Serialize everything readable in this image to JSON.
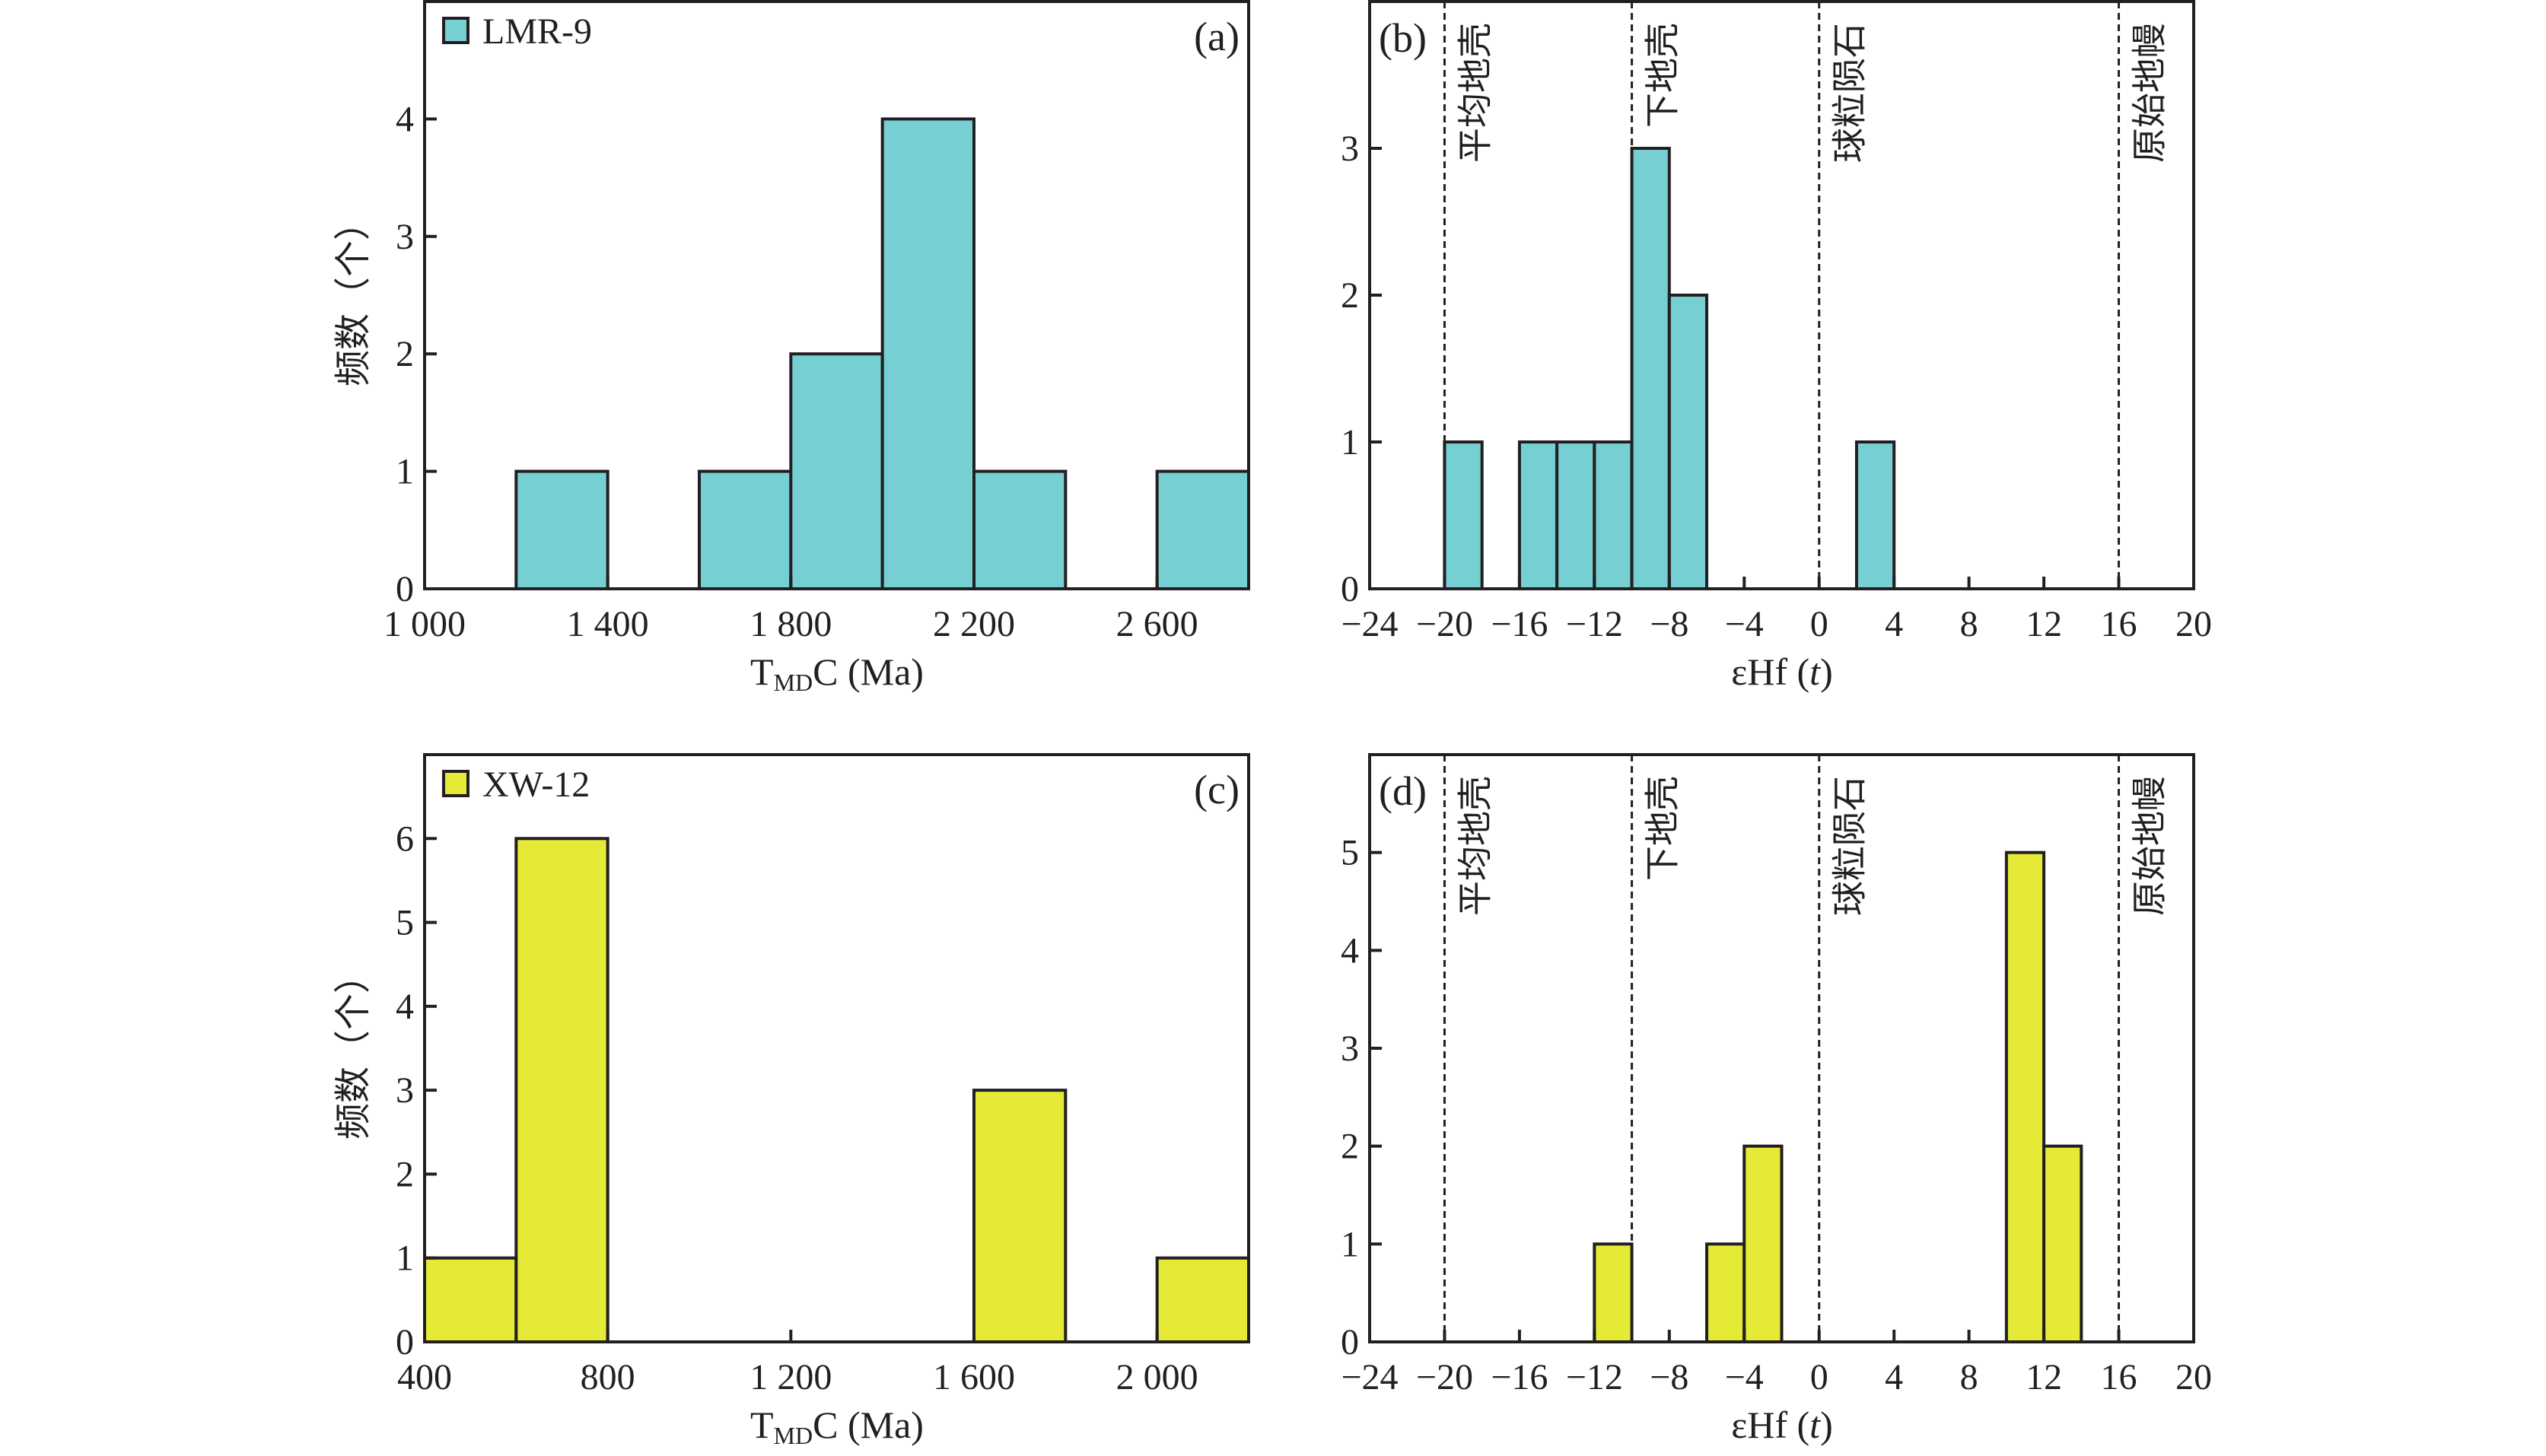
{
  "figure": {
    "y_axis_title": "频数（个）",
    "tmdc_title_main": "T",
    "tmdc_title_sub": "MD",
    "tmdc_title_rest": "C (Ma)",
    "ehf_title_main": "εHf (",
    "ehf_title_italic": "t",
    "ehf_title_close": ")"
  },
  "chart_data": [
    {
      "id": "a",
      "panel_label": "(a)",
      "type": "bar",
      "subtype": "histogram",
      "legend": "LMR-9",
      "legend_placement": "top-left",
      "color": "#76D0D3",
      "xlabel": "TMDC (Ma)",
      "ylabel": "频数（个）",
      "xlim": [
        1000,
        2800
      ],
      "ylim": [
        0,
        5
      ],
      "xticks": [
        1000,
        1400,
        1800,
        2200,
        2600
      ],
      "xtick_labels": [
        "1 000",
        "1 400",
        "1 800",
        "2 200",
        "2 600"
      ],
      "yticks": [
        0,
        1,
        2,
        3,
        4
      ],
      "bins": [
        {
          "x0": 1200,
          "x1": 1400,
          "count": 1
        },
        {
          "x0": 1600,
          "x1": 1800,
          "count": 1
        },
        {
          "x0": 1800,
          "x1": 2000,
          "count": 2
        },
        {
          "x0": 2000,
          "x1": 2200,
          "count": 4
        },
        {
          "x0": 2200,
          "x1": 2400,
          "count": 1
        },
        {
          "x0": 2600,
          "x1": 2800,
          "count": 1
        }
      ],
      "reference_lines": []
    },
    {
      "id": "b",
      "panel_label": "(b)",
      "type": "bar",
      "subtype": "histogram",
      "legend": "",
      "color": "#76D0D3",
      "xlabel": "εHf (t)",
      "ylabel": "",
      "xlim": [
        -24,
        20
      ],
      "ylim": [
        0,
        4
      ],
      "xticks": [
        -24,
        -20,
        -16,
        -12,
        -8,
        -4,
        0,
        4,
        8,
        12,
        16,
        20
      ],
      "xtick_labels": [
        "−24",
        "−20",
        "−16",
        "−12",
        "−8",
        "−4",
        "0",
        "4",
        "8",
        "12",
        "16",
        "20"
      ],
      "yticks": [
        0,
        1,
        2,
        3
      ],
      "bins": [
        {
          "x0": -20,
          "x1": -18,
          "count": 1
        },
        {
          "x0": -16,
          "x1": -14,
          "count": 1
        },
        {
          "x0": -14,
          "x1": -12,
          "count": 1
        },
        {
          "x0": -12,
          "x1": -10,
          "count": 1
        },
        {
          "x0": -10,
          "x1": -8,
          "count": 3
        },
        {
          "x0": -8,
          "x1": -6,
          "count": 2
        },
        {
          "x0": 2,
          "x1": 4,
          "count": 1
        }
      ],
      "reference_lines": [
        {
          "x": -20,
          "label": "平均地壳"
        },
        {
          "x": -10,
          "label": "下地壳"
        },
        {
          "x": 0,
          "label": "球粒陨石"
        },
        {
          "x": 16,
          "label": "原始地幔"
        }
      ]
    },
    {
      "id": "c",
      "panel_label": "(c)",
      "type": "bar",
      "subtype": "histogram",
      "legend": "XW-12",
      "legend_placement": "top-left",
      "color": "#E4EA35",
      "xlabel": "TMDC (Ma)",
      "ylabel": "频数（个）",
      "xlim": [
        400,
        2200
      ],
      "ylim": [
        0,
        7
      ],
      "xticks": [
        400,
        800,
        1200,
        1600,
        2000
      ],
      "xtick_labels": [
        "400",
        "800",
        "1 200",
        "1 600",
        "2 000"
      ],
      "yticks": [
        0,
        1,
        2,
        3,
        4,
        5,
        6
      ],
      "bins": [
        {
          "x0": 400,
          "x1": 600,
          "count": 1
        },
        {
          "x0": 600,
          "x1": 800,
          "count": 6
        },
        {
          "x0": 1600,
          "x1": 1800,
          "count": 3
        },
        {
          "x0": 2000,
          "x1": 2200,
          "count": 1
        }
      ],
      "reference_lines": []
    },
    {
      "id": "d",
      "panel_label": "(d)",
      "type": "bar",
      "subtype": "histogram",
      "legend": "",
      "color": "#E4EA35",
      "xlabel": "εHf (t)",
      "ylabel": "",
      "xlim": [
        -24,
        20
      ],
      "ylim": [
        0,
        6
      ],
      "xticks": [
        -24,
        -20,
        -16,
        -12,
        -8,
        -4,
        0,
        4,
        8,
        12,
        16,
        20
      ],
      "xtick_labels": [
        "−24",
        "−20",
        "−16",
        "−12",
        "−8",
        "−4",
        "0",
        "4",
        "8",
        "12",
        "16",
        "20"
      ],
      "yticks": [
        0,
        1,
        2,
        3,
        4,
        5
      ],
      "bins": [
        {
          "x0": -12,
          "x1": -10,
          "count": 1
        },
        {
          "x0": -6,
          "x1": -4,
          "count": 1
        },
        {
          "x0": -4,
          "x1": -2,
          "count": 2
        },
        {
          "x0": 10,
          "x1": 12,
          "count": 5
        },
        {
          "x0": 12,
          "x1": 14,
          "count": 2
        }
      ],
      "reference_lines": [
        {
          "x": -20,
          "label": "平均地壳"
        },
        {
          "x": -10,
          "label": "下地壳"
        },
        {
          "x": 0,
          "label": "球粒陨石"
        },
        {
          "x": 16,
          "label": "原始地幔"
        }
      ]
    }
  ]
}
